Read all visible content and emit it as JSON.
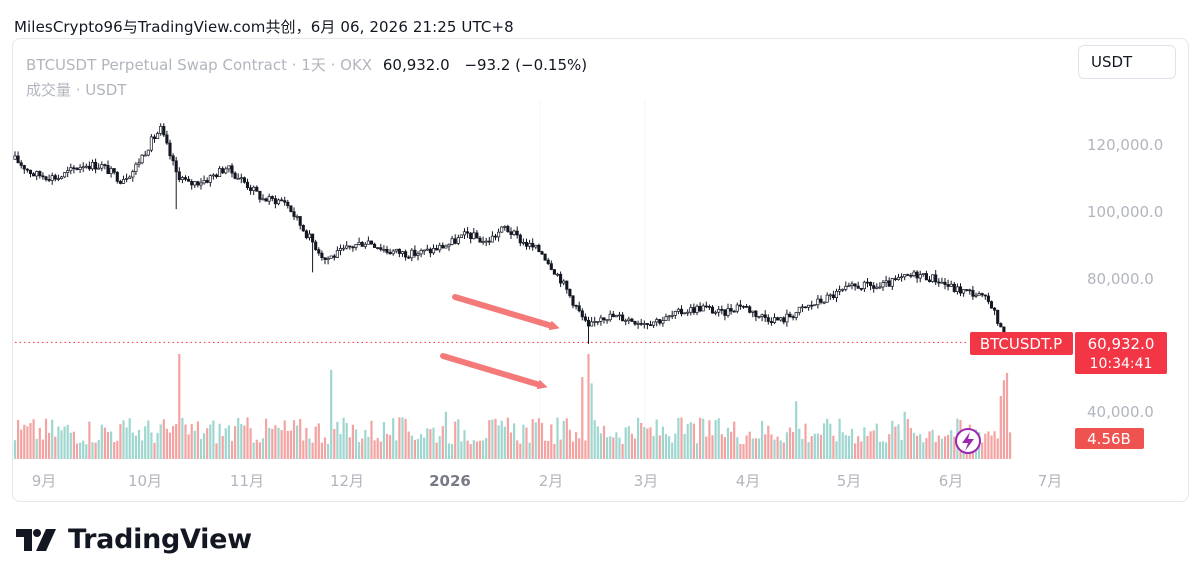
{
  "caption": "MilesCrypto96与TradingView.com共创，6月 06, 2026 21:25 UTC+8",
  "legend": {
    "symbol": "BTCUSDT Perpetual Swap Contract · 1天 · OKX",
    "price": "60,932.0",
    "change": "−93.2 (−0.15%)",
    "volume_label": "成交量 · USDT"
  },
  "currency_button": "USDT",
  "brand": "TradingView",
  "colors": {
    "up": "#26a69a",
    "down": "#ef5350",
    "candle": "#131722",
    "price_line": "#f23645",
    "arrow": "#f47a7a"
  },
  "chart_data": {
    "type": "candlestick",
    "title": "BTCUSDT Perpetual Swap Contract · 1天 · OKX",
    "y_ticks": [
      "120,000.0",
      "100,000.0",
      "80,000.0",
      "40,000.0"
    ],
    "y_tick_values": [
      120000,
      100000,
      80000,
      40000
    ],
    "x_ticks": [
      "9月",
      "10月",
      "11月",
      "12月",
      "2026",
      "2月",
      "3月",
      "4月",
      "5月",
      "6月",
      "7月"
    ],
    "last_price": "60,932.0",
    "last_price_label": "BTCUSDT.P",
    "countdown": "10:34:41",
    "volume_last": "4.56B",
    "anchors": [
      {
        "t": 0,
        "p": 116000
      },
      {
        "t": 6,
        "p": 111500
      },
      {
        "t": 14,
        "p": 110500
      },
      {
        "t": 22,
        "p": 114500
      },
      {
        "t": 28,
        "p": 114000
      },
      {
        "t": 34,
        "p": 110000
      },
      {
        "t": 38,
        "p": 112500
      },
      {
        "t": 44,
        "p": 121500
      },
      {
        "t": 47,
        "p": 125000
      },
      {
        "t": 52,
        "p": 112000
      },
      {
        "t": 56,
        "p": 108500
      },
      {
        "t": 62,
        "p": 110000
      },
      {
        "t": 68,
        "p": 113500
      },
      {
        "t": 73,
        "p": 110000
      },
      {
        "t": 80,
        "p": 104000
      },
      {
        "t": 87,
        "p": 103500
      },
      {
        "t": 93,
        "p": 95000
      },
      {
        "t": 100,
        "p": 86000
      },
      {
        "t": 104,
        "p": 87500
      },
      {
        "t": 109,
        "p": 90000
      },
      {
        "t": 114,
        "p": 91500
      },
      {
        "t": 120,
        "p": 88500
      },
      {
        "t": 128,
        "p": 87500
      },
      {
        "t": 134,
        "p": 88500
      },
      {
        "t": 140,
        "p": 90500
      },
      {
        "t": 146,
        "p": 93500
      },
      {
        "t": 152,
        "p": 91000
      },
      {
        "t": 158,
        "p": 95500
      },
      {
        "t": 164,
        "p": 91000
      },
      {
        "t": 170,
        "p": 88000
      },
      {
        "t": 176,
        "p": 80000
      },
      {
        "t": 182,
        "p": 70000
      },
      {
        "t": 185,
        "p": 65000
      },
      {
        "t": 189,
        "p": 69000
      },
      {
        "t": 195,
        "p": 68500
      },
      {
        "t": 203,
        "p": 67000
      },
      {
        "t": 210,
        "p": 68000
      },
      {
        "t": 216,
        "p": 70500
      },
      {
        "t": 222,
        "p": 71500
      },
      {
        "t": 228,
        "p": 69500
      },
      {
        "t": 234,
        "p": 72500
      },
      {
        "t": 240,
        "p": 69000
      },
      {
        "t": 247,
        "p": 67500
      },
      {
        "t": 253,
        "p": 70500
      },
      {
        "t": 259,
        "p": 73000
      },
      {
        "t": 266,
        "p": 76000
      },
      {
        "t": 272,
        "p": 78000
      },
      {
        "t": 279,
        "p": 77500
      },
      {
        "t": 286,
        "p": 80000
      },
      {
        "t": 291,
        "p": 81500
      },
      {
        "t": 297,
        "p": 80000
      },
      {
        "t": 303,
        "p": 77000
      },
      {
        "t": 310,
        "p": 75500
      },
      {
        "t": 315,
        "p": 72500
      },
      {
        "t": 318,
        "p": 64500
      },
      {
        "t": 321,
        "p": 60932
      }
    ],
    "volume_spikes": [
      {
        "t": 53,
        "v": 1.0
      },
      {
        "t": 102,
        "v": 0.85
      },
      {
        "t": 139,
        "v": 0.45
      },
      {
        "t": 183,
        "v": 0.78
      },
      {
        "t": 185,
        "v": 1.0
      },
      {
        "t": 186,
        "v": 0.72
      },
      {
        "t": 252,
        "v": 0.55
      },
      {
        "t": 287,
        "v": 0.45
      },
      {
        "t": 318,
        "v": 0.6
      },
      {
        "t": 319,
        "v": 0.75
      },
      {
        "t": 320,
        "v": 0.82
      }
    ]
  }
}
